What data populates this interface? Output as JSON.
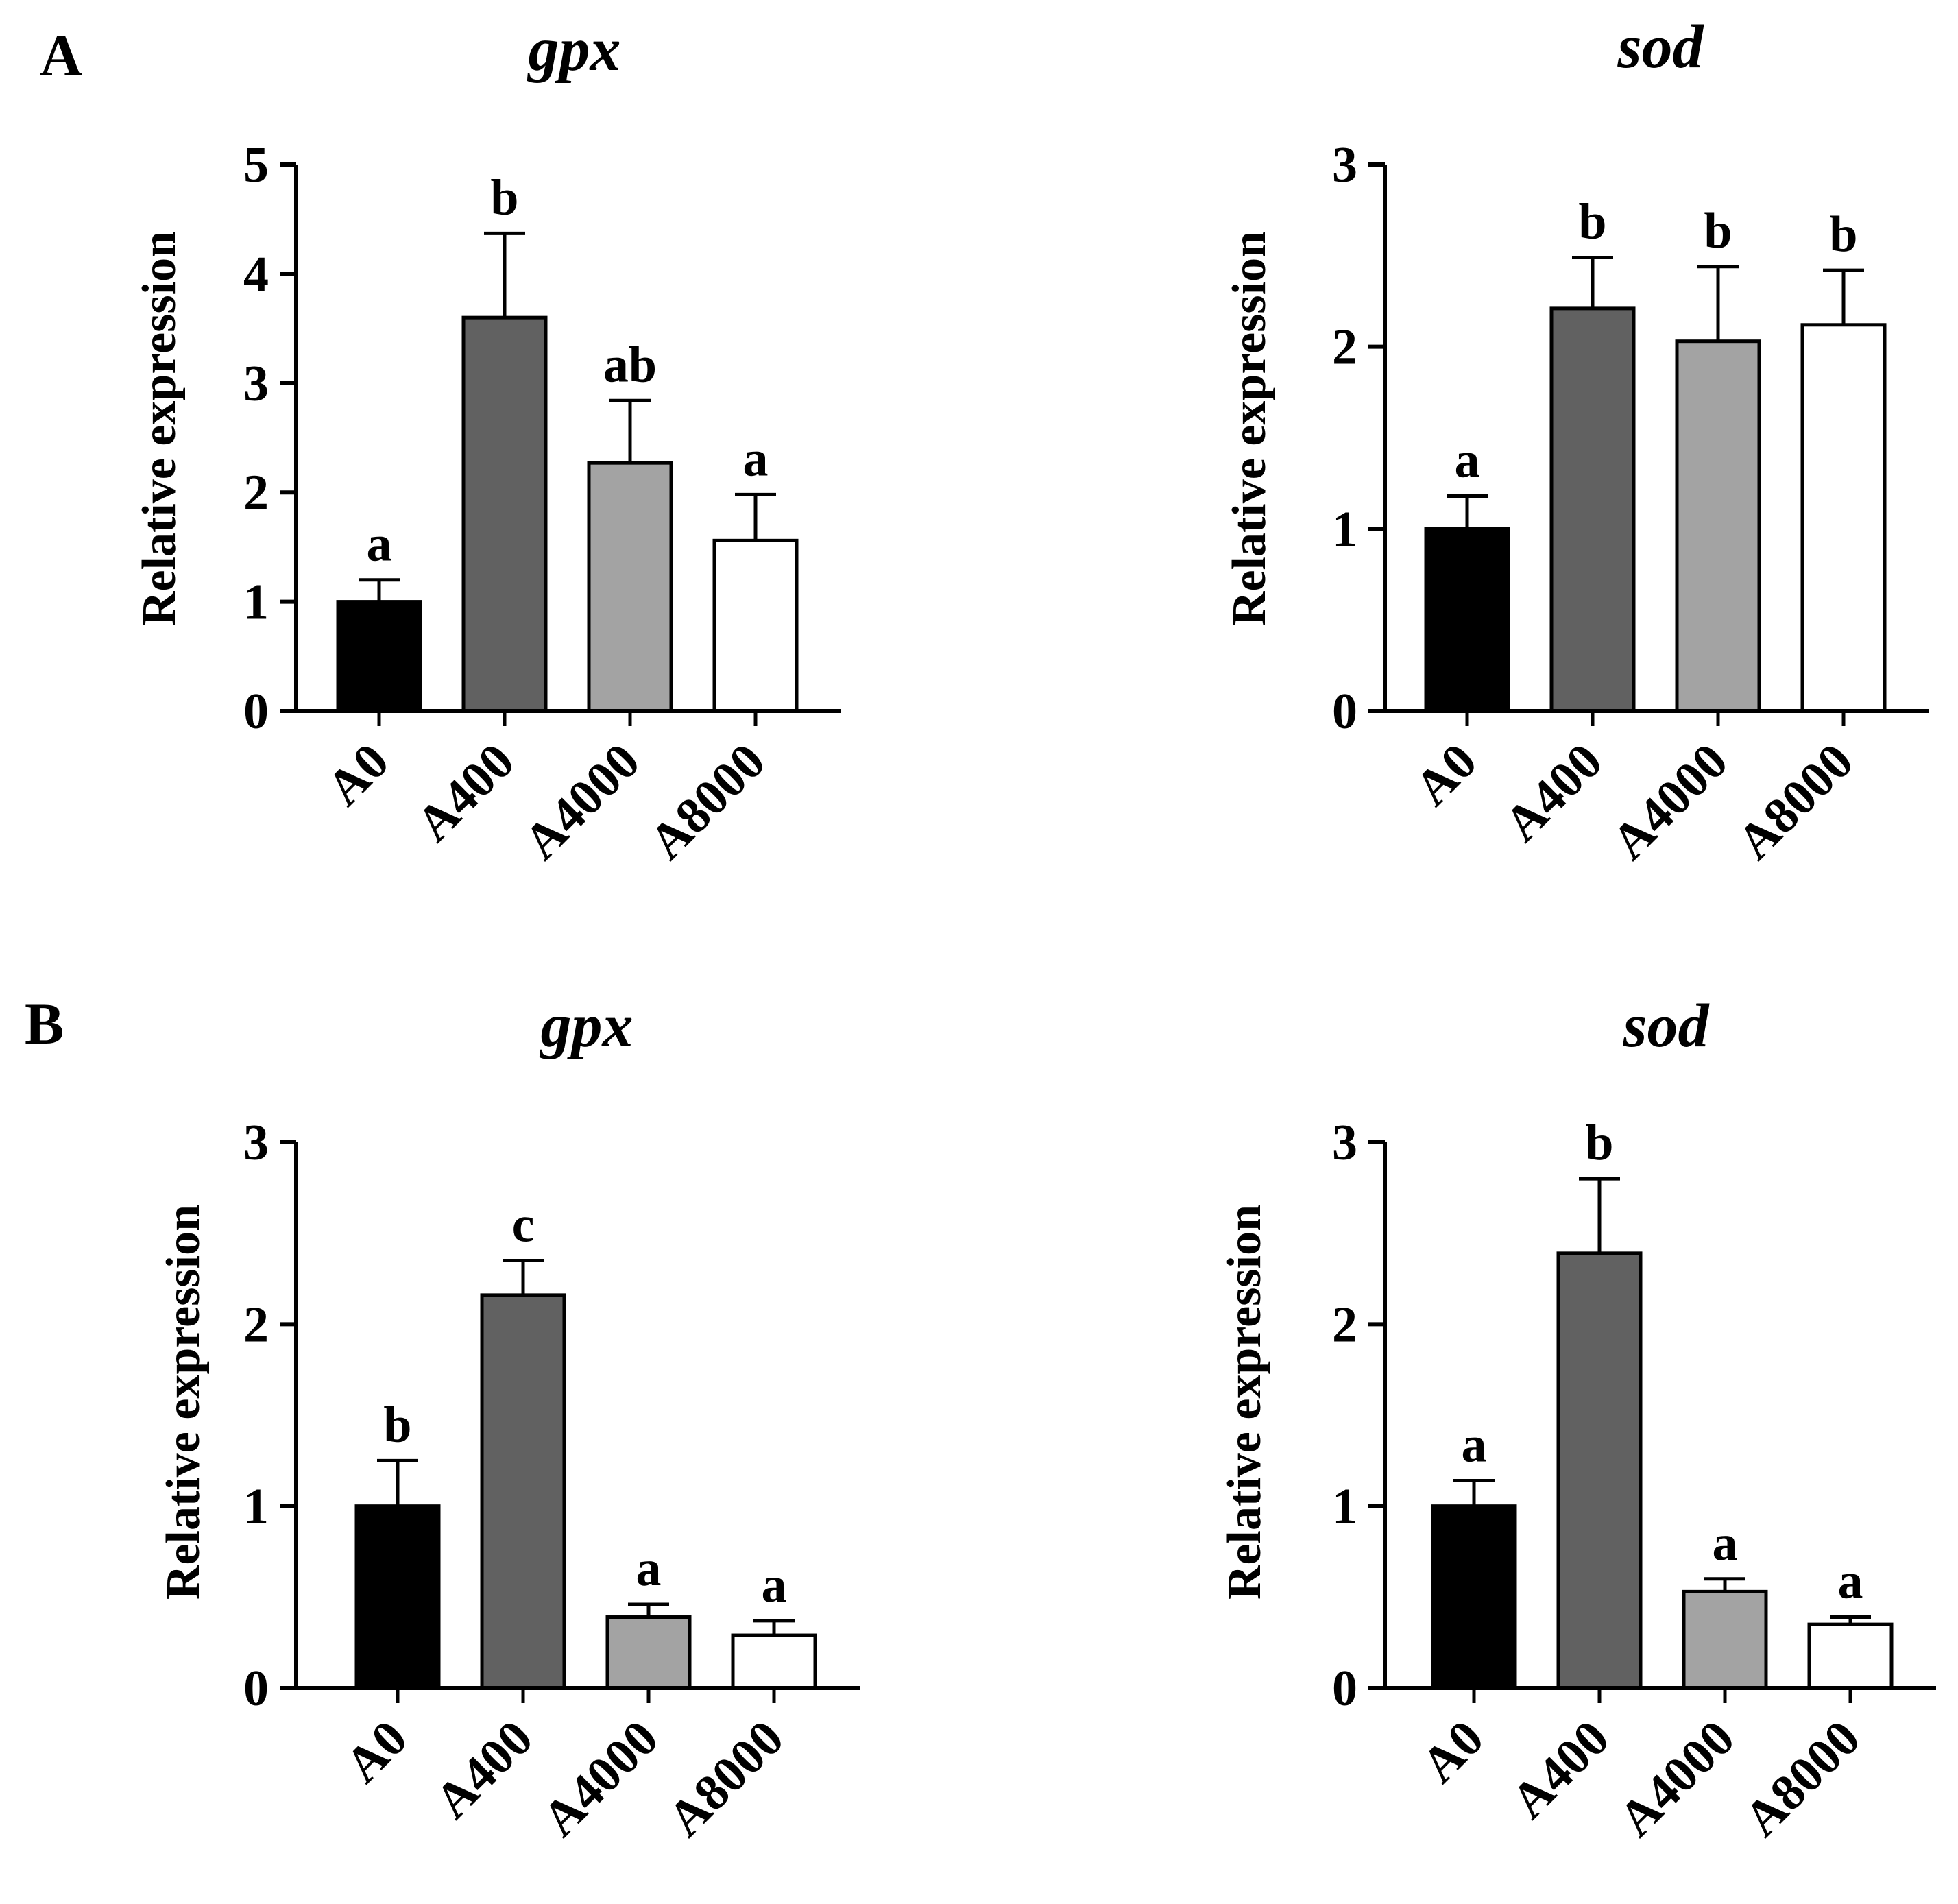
{
  "panels": [
    {
      "letter": "A"
    },
    {
      "letter": "B"
    }
  ],
  "chart_data": [
    {
      "type": "bar",
      "panel": "A",
      "title": "gpx",
      "xlabel": "",
      "ylabel": "Relative expression",
      "ylim": [
        0,
        5
      ],
      "yticks": [
        "0",
        "1",
        "2",
        "3",
        "4",
        "5"
      ],
      "categories": [
        "A0",
        "A400",
        "A4000",
        "A8000"
      ],
      "values": [
        1.0,
        3.6,
        2.27,
        1.56
      ],
      "errors": [
        0.2,
        0.77,
        0.57,
        0.42
      ],
      "significance": [
        "a",
        "b",
        "ab",
        "a"
      ],
      "bar_colors": [
        "#000000",
        "#616161",
        "#a3a3a3",
        "#ffffff"
      ]
    },
    {
      "type": "bar",
      "panel": "A",
      "title": "sod",
      "xlabel": "",
      "ylabel": "Relative expression",
      "ylim": [
        0,
        3
      ],
      "yticks": [
        "0",
        "1",
        "2",
        "3"
      ],
      "categories": [
        "A0",
        "A400",
        "A4000",
        "A8000"
      ],
      "values": [
        1.0,
        2.21,
        2.03,
        2.12
      ],
      "errors": [
        0.18,
        0.28,
        0.41,
        0.3
      ],
      "significance": [
        "a",
        "b",
        "b",
        "b"
      ],
      "bar_colors": [
        "#000000",
        "#616161",
        "#a3a3a3",
        "#ffffff"
      ]
    },
    {
      "type": "bar",
      "panel": "B",
      "title": "gpx",
      "xlabel": "",
      "ylabel": "Relative expression",
      "ylim": [
        0,
        3
      ],
      "yticks": [
        "0",
        "1",
        "2",
        "3"
      ],
      "categories": [
        "A0",
        "A400",
        "A4000",
        "A8000"
      ],
      "values": [
        1.0,
        2.16,
        0.39,
        0.29
      ],
      "errors": [
        0.25,
        0.19,
        0.07,
        0.08
      ],
      "significance": [
        "b",
        "c",
        "a",
        "a"
      ],
      "bar_colors": [
        "#000000",
        "#616161",
        "#a3a3a3",
        "#ffffff"
      ]
    },
    {
      "type": "bar",
      "panel": "B",
      "title": "sod",
      "xlabel": "",
      "ylabel": "Relative expression",
      "ylim": [
        0,
        3
      ],
      "yticks": [
        "0",
        "1",
        "2",
        "3"
      ],
      "categories": [
        "A0",
        "A400",
        "A4000",
        "A8000"
      ],
      "values": [
        1.0,
        2.39,
        0.53,
        0.35
      ],
      "errors": [
        0.14,
        0.41,
        0.07,
        0.04
      ],
      "significance": [
        "a",
        "b",
        "a",
        "a"
      ],
      "bar_colors": [
        "#000000",
        "#616161",
        "#a3a3a3",
        "#ffffff"
      ]
    }
  ]
}
